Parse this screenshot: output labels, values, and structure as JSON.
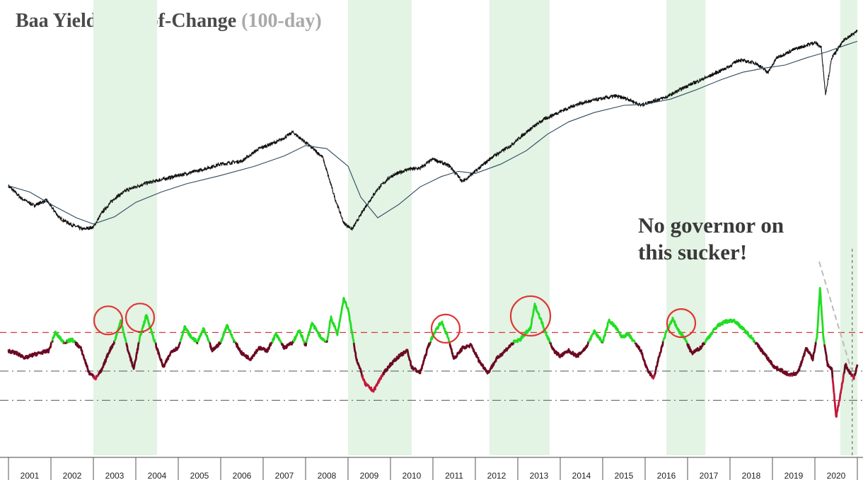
{
  "title": "Baa Yield Rate-of-Change",
  "subtitle": "(100-day)",
  "annotation": [
    "No governor on",
    "this sucker!"
  ],
  "colors": {
    "shade": "#e3f3e4",
    "price": "#111111",
    "moving_average": "#2c4a5e",
    "roc_high": "#22dd22",
    "roc_low": "#6b0a22",
    "roc_low_extreme": "#c2183a",
    "ref_line_upper": "#d9363e",
    "ref_line_lower": "#666666",
    "circle": "#e03535"
  },
  "chart_data": [
    {
      "type": "line",
      "name": "price",
      "x_range": [
        2001,
        2021
      ],
      "shaded_periods": [
        [
          2003.0,
          2004.5
        ],
        [
          2009.0,
          2010.5
        ],
        [
          2012.33,
          2013.75
        ],
        [
          2016.5,
          2017.42
        ],
        [
          2020.6,
          2021.0
        ]
      ],
      "series": [
        {
          "kind": "price",
          "x": [
            2001.0,
            2001.3,
            2001.6,
            2001.9,
            2002.2,
            2002.5,
            2002.75,
            2003.0,
            2003.2,
            2003.5,
            2003.8,
            2004.2,
            2004.6,
            2005.0,
            2005.5,
            2006.0,
            2006.5,
            2006.9,
            2007.4,
            2007.7,
            2008.0,
            2008.4,
            2008.7,
            2008.9,
            2009.1,
            2009.4,
            2009.7,
            2010.0,
            2010.4,
            2010.7,
            2011.0,
            2011.4,
            2011.7,
            2012.0,
            2012.4,
            2012.8,
            2013.2,
            2013.6,
            2014.0,
            2014.4,
            2014.8,
            2015.3,
            2015.6,
            2015.9,
            2016.1,
            2016.5,
            2017.0,
            2017.5,
            2018.0,
            2018.2,
            2018.6,
            2018.9,
            2019.1,
            2019.5,
            2020.0,
            2020.15,
            2020.25,
            2020.4,
            2020.7,
            2020.9,
            2021.0
          ],
          "y": [
            0.86,
            0.74,
            0.67,
            0.72,
            0.55,
            0.48,
            0.44,
            0.46,
            0.6,
            0.74,
            0.82,
            0.88,
            0.92,
            0.96,
            1.01,
            1.07,
            1.1,
            1.22,
            1.3,
            1.38,
            1.28,
            1.14,
            0.73,
            0.5,
            0.44,
            0.65,
            0.83,
            0.95,
            1.02,
            1.03,
            1.12,
            1.05,
            0.9,
            1.0,
            1.14,
            1.24,
            1.38,
            1.5,
            1.58,
            1.65,
            1.69,
            1.73,
            1.7,
            1.64,
            1.67,
            1.72,
            1.83,
            1.92,
            2.02,
            2.08,
            2.05,
            1.96,
            2.1,
            2.18,
            2.25,
            2.2,
            1.75,
            2.1,
            2.28,
            2.33,
            2.36
          ]
        },
        {
          "kind": "moving_average",
          "x": [
            2001.0,
            2001.5,
            2002.0,
            2002.6,
            2003.0,
            2003.5,
            2004.0,
            2004.6,
            2005.2,
            2006.0,
            2006.8,
            2007.5,
            2008.0,
            2008.5,
            2009.0,
            2009.3,
            2009.7,
            2010.2,
            2010.7,
            2011.2,
            2011.6,
            2012.0,
            2012.6,
            2013.2,
            2013.7,
            2014.2,
            2014.8,
            2015.5,
            2016.0,
            2016.6,
            2017.2,
            2017.8,
            2018.3,
            2018.8,
            2019.3,
            2019.8,
            2020.3,
            2020.7,
            2021.0
          ],
          "y": [
            0.86,
            0.8,
            0.68,
            0.55,
            0.49,
            0.56,
            0.7,
            0.8,
            0.88,
            0.96,
            1.05,
            1.15,
            1.25,
            1.22,
            1.05,
            0.75,
            0.55,
            0.68,
            0.85,
            0.95,
            1.0,
            0.98,
            1.07,
            1.2,
            1.36,
            1.48,
            1.57,
            1.64,
            1.65,
            1.7,
            1.79,
            1.89,
            1.96,
            2.0,
            2.03,
            2.1,
            2.16,
            2.22,
            2.26
          ]
        }
      ]
    },
    {
      "type": "line",
      "name": "roc",
      "x_range": [
        2001,
        2021
      ],
      "y_range": [
        -1.3,
        1.05
      ],
      "reference_lines": [
        0.38,
        -0.32,
        -0.85
      ],
      "series": [
        {
          "kind": "roc",
          "x": [
            2001.0,
            2001.2,
            2001.4,
            2001.6,
            2001.8,
            2001.95,
            2002.1,
            2002.3,
            2002.5,
            2002.7,
            2002.9,
            2003.05,
            2003.2,
            2003.35,
            2003.5,
            2003.65,
            2003.8,
            2003.95,
            2004.1,
            2004.25,
            2004.45,
            2004.65,
            2004.85,
            2005.0,
            2005.15,
            2005.3,
            2005.45,
            2005.6,
            2005.8,
            2006.0,
            2006.15,
            2006.3,
            2006.5,
            2006.7,
            2006.9,
            2007.1,
            2007.3,
            2007.5,
            2007.7,
            2007.85,
            2008.0,
            2008.15,
            2008.35,
            2008.5,
            2008.6,
            2008.75,
            2008.9,
            2009.0,
            2009.2,
            2009.4,
            2009.6,
            2009.8,
            2010.0,
            2010.2,
            2010.4,
            2010.5,
            2010.7,
            2010.9,
            2011.05,
            2011.2,
            2011.35,
            2011.5,
            2011.7,
            2011.9,
            2012.1,
            2012.3,
            2012.5,
            2012.7,
            2012.9,
            2013.05,
            2013.2,
            2013.3,
            2013.4,
            2013.55,
            2013.7,
            2013.85,
            2014.0,
            2014.2,
            2014.4,
            2014.6,
            2014.8,
            2015.0,
            2015.15,
            2015.3,
            2015.45,
            2015.6,
            2015.75,
            2015.9,
            2016.05,
            2016.2,
            2016.35,
            2016.5,
            2016.65,
            2016.8,
            2016.95,
            2017.1,
            2017.3,
            2017.5,
            2017.7,
            2017.9,
            2018.1,
            2018.3,
            2018.5,
            2018.7,
            2018.9,
            2019.05,
            2019.2,
            2019.4,
            2019.6,
            2019.8,
            2019.95,
            2020.05,
            2020.12,
            2020.2,
            2020.3,
            2020.4,
            2020.5,
            2020.6,
            2020.72,
            2020.82,
            2020.92,
            2021.0
          ],
          "y": [
            0.05,
            0.0,
            -0.08,
            -0.02,
            0.02,
            0.05,
            0.38,
            0.2,
            0.25,
            0.1,
            -0.35,
            -0.45,
            -0.3,
            0.0,
            0.22,
            0.6,
            0.1,
            -0.28,
            0.3,
            0.7,
            0.2,
            -0.25,
            0.05,
            0.1,
            0.48,
            0.3,
            0.2,
            0.45,
            0.05,
            0.2,
            0.52,
            0.25,
            0.0,
            -0.1,
            0.1,
            0.05,
            0.35,
            0.1,
            0.2,
            0.42,
            0.15,
            0.55,
            0.3,
            0.2,
            0.65,
            0.35,
            1.0,
            0.8,
            -0.1,
            -0.55,
            -0.68,
            -0.4,
            -0.2,
            -0.05,
            0.05,
            -0.25,
            -0.35,
            0.15,
            0.4,
            0.58,
            0.3,
            -0.1,
            0.1,
            0.15,
            -0.15,
            -0.35,
            -0.1,
            0.05,
            0.2,
            0.25,
            0.38,
            0.45,
            0.88,
            0.6,
            0.3,
            0.05,
            -0.05,
            0.05,
            -0.05,
            0.1,
            0.4,
            0.2,
            0.6,
            0.48,
            0.3,
            0.35,
            0.2,
            0.05,
            -0.3,
            -0.45,
            0.0,
            0.4,
            0.62,
            0.4,
            0.25,
            0.0,
            0.1,
            0.3,
            0.5,
            0.58,
            0.6,
            0.45,
            0.3,
            0.1,
            -0.1,
            -0.25,
            -0.3,
            -0.4,
            -0.35,
            0.1,
            -0.1,
            0.3,
            1.2,
            0.3,
            -0.2,
            -0.3,
            -1.15,
            -0.75,
            -0.2,
            -0.35,
            -0.45,
            -0.2
          ]
        }
      ]
    }
  ],
  "x_axis": {
    "ticks": [
      "2001",
      "2002",
      "2003",
      "2004",
      "2005",
      "2006",
      "2007",
      "2008",
      "2009",
      "2010",
      "2011",
      "2012",
      "2013",
      "2014",
      "2015",
      "2016",
      "2017",
      "2018",
      "2019",
      "2020"
    ]
  },
  "highlight_circles": [
    {
      "x": 2003.35,
      "y": 0.6
    },
    {
      "x": 2004.1,
      "y": 0.65
    },
    {
      "x": 2011.3,
      "y": 0.45
    },
    {
      "x": 2013.3,
      "y": 0.68
    },
    {
      "x": 2016.85,
      "y": 0.55
    }
  ],
  "pointer": {
    "from": [
      2020.1,
      1.02
    ],
    "to": [
      2020.85,
      0.0
    ]
  }
}
